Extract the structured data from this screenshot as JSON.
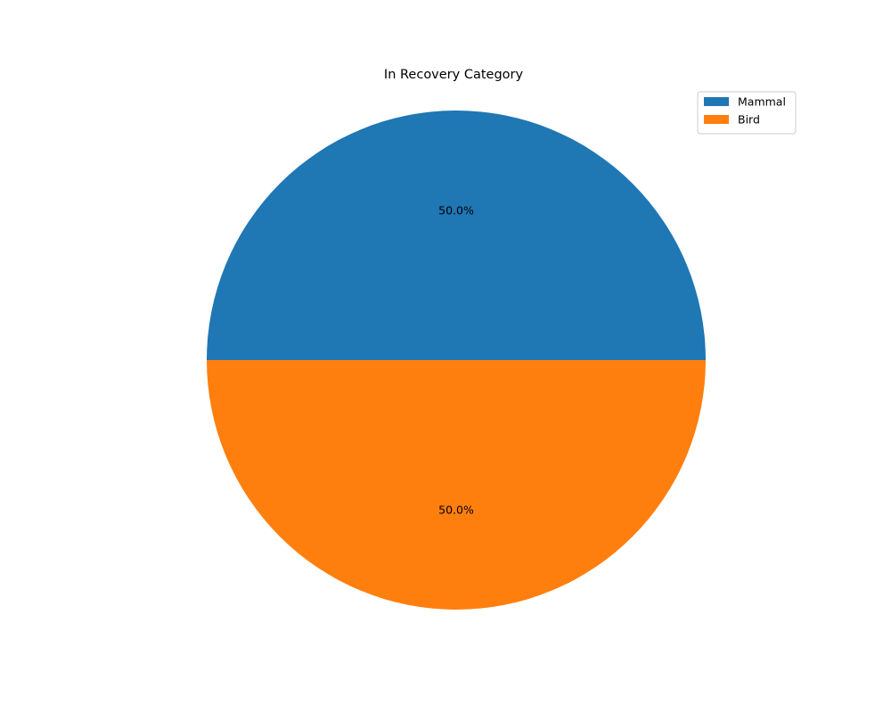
{
  "chart_data": {
    "type": "pie",
    "title": "In Recovery Category",
    "slices": [
      {
        "label": "Mammal",
        "value": 50.0,
        "color": "#1f77b4",
        "pct_label": "50.0%"
      },
      {
        "label": "Bird",
        "value": 50.0,
        "color": "#ff7f0e",
        "pct_label": "50.0%"
      }
    ],
    "legend": {
      "placement": "top-right",
      "entries": [
        "Mammal",
        "Bird"
      ]
    },
    "start_angle_deg": 0,
    "direction": "counterclockwise"
  }
}
